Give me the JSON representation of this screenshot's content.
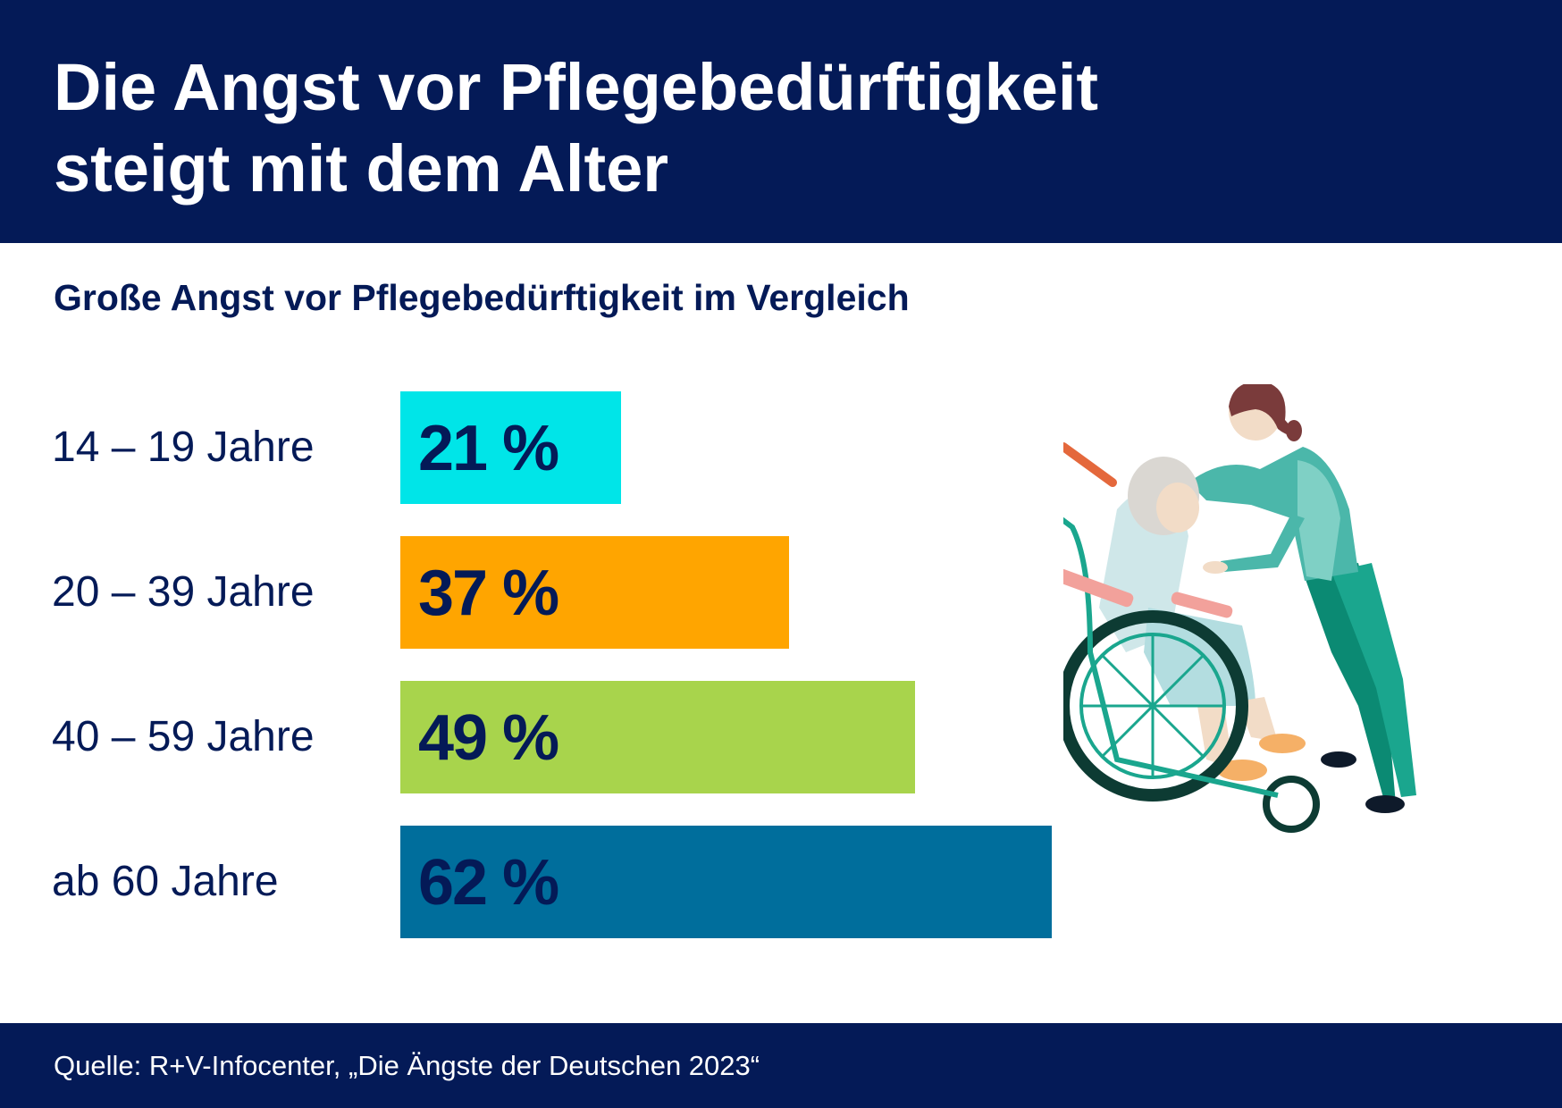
{
  "header": {
    "title_line1": "Die Angst vor Pflegebedürftigkeit",
    "title_line2": "steigt mit dem Alter"
  },
  "subtitle": "Große Angst vor Pflegebedürftigkeit im Vergleich",
  "chart_data": {
    "type": "bar",
    "orientation": "horizontal",
    "title": "Große Angst vor Pflegebedürftigkeit im Vergleich",
    "categories": [
      "14 – 19 Jahre",
      "20 – 39 Jahre",
      "40 – 59 Jahre",
      "ab 60 Jahre"
    ],
    "values": [
      21,
      37,
      49,
      62
    ],
    "value_labels": [
      "21 %",
      "37 %",
      "49 %",
      "62 %"
    ],
    "unit": "%",
    "colors": [
      "#00e5e8",
      "#ffa500",
      "#a8d44c",
      "#006e9c"
    ],
    "xlim": [
      0,
      100
    ],
    "grid": false,
    "legend": "none"
  },
  "illustration": {
    "icon": "nurse-with-wheelchair-patient-icon"
  },
  "footer": {
    "source": "Quelle: R+V-Infocenter, „Die Ängste der Deutschen 2023“"
  }
}
